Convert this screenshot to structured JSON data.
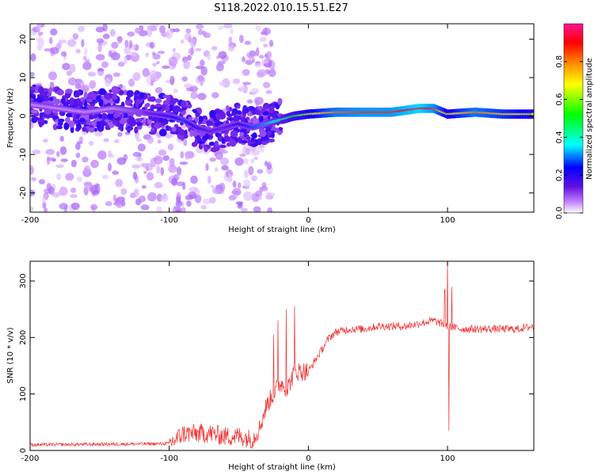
{
  "title": "S118.2022.010.15.51.E27",
  "chart_data": [
    {
      "type": "heatmap",
      "xlabel": "Height of straight line (km)",
      "ylabel": "Frequency (Hz)",
      "xlim": [
        -200,
        162
      ],
      "ylim": [
        -25,
        24
      ],
      "xticks": [
        -200,
        -100,
        0,
        100
      ],
      "yticks": [
        -20,
        -10,
        0,
        10,
        20
      ],
      "colorbar": {
        "label": "Normalized spectral amplitude",
        "range": [
          0.0,
          1.0
        ],
        "ticks": [
          0.0,
          0.2,
          0.4,
          0.6,
          0.8
        ],
        "tick_labels": [
          "0.0",
          "0.2",
          "0.4",
          "0.6",
          "0.8"
        ],
        "colormap": [
          "#ffffff",
          "#c080ff",
          "#6010e0",
          "#0000ff",
          "#00ffff",
          "#00ff00",
          "#ffff00",
          "#ff8000",
          "#ff0000",
          "#ff1493"
        ]
      },
      "ridge": {
        "x": [
          -200,
          -180,
          -160,
          -140,
          -120,
          -100,
          -90,
          -80,
          -70,
          -60,
          -50,
          -40,
          -30,
          -20,
          -10,
          0,
          20,
          40,
          60,
          70,
          80,
          90,
          100,
          120,
          140,
          160
        ],
        "frequency": [
          3,
          2,
          1,
          2,
          1,
          0,
          -1,
          -3,
          -4,
          -3,
          -2,
          -3,
          -2,
          -1,
          0,
          0.5,
          1,
          1,
          1,
          1.5,
          2,
          2,
          0.5,
          1,
          0.5,
          0.5
        ],
        "amplitude": [
          0.05,
          0.05,
          0.05,
          0.05,
          0.1,
          0.2,
          0.25,
          0.2,
          0.15,
          0.15,
          0.2,
          0.25,
          0.3,
          0.4,
          0.5,
          0.6,
          0.8,
          0.85,
          0.85,
          0.9,
          0.95,
          0.85,
          0.6,
          0.8,
          0.7,
          0.6
        ]
      },
      "grid": false
    },
    {
      "type": "line",
      "xlabel": "Height of straight line (km)",
      "ylabel": "SNR (10 * v/v)",
      "xlim": [
        -200,
        162
      ],
      "ylim": [
        0,
        335
      ],
      "xticks": [
        -200,
        -100,
        0,
        100
      ],
      "yticks": [
        0,
        100,
        200,
        300
      ],
      "color": "#f03030",
      "baseline": {
        "x": [
          -200,
          -100,
          -95,
          -90,
          -80,
          -70,
          -60,
          -50,
          -40,
          -35,
          -30,
          -25,
          -20,
          -15,
          -10,
          -5,
          0,
          5,
          10,
          15,
          20,
          30,
          40,
          50,
          60,
          70,
          80,
          90,
          100,
          110,
          120,
          130,
          140,
          150,
          162
        ],
        "y": [
          10,
          12,
          20,
          30,
          30,
          30,
          25,
          25,
          20,
          40,
          80,
          100,
          120,
          110,
          140,
          140,
          140,
          160,
          180,
          200,
          210,
          215,
          215,
          220,
          220,
          220,
          225,
          230,
          220,
          215,
          215,
          215,
          215,
          215,
          220
        ]
      },
      "spikes": [
        {
          "x": -25,
          "y": 205
        },
        {
          "x": -22,
          "y": 230
        },
        {
          "x": -16,
          "y": 250
        },
        {
          "x": -10,
          "y": 255
        },
        {
          "x": 98,
          "y": 285
        },
        {
          "x": 100,
          "y": 335
        },
        {
          "x": 101,
          "y": 35
        },
        {
          "x": 103,
          "y": 290
        }
      ],
      "grid": false
    }
  ]
}
